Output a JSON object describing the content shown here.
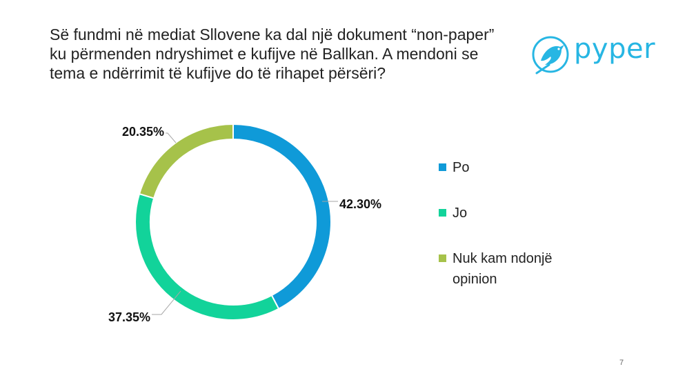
{
  "title_lines": [
    "Së fundmi në mediat Sllovene ka dal një dokument “non-paper”",
    "ku përmenden ndryshimet e kufijve në Ballkan. A mendoni se",
    "tema e ndërrimit të kufijve do të rihapet përsëri?"
  ],
  "logo": {
    "text": "pyper",
    "icon": "bird-icon",
    "color": "#27b6e3"
  },
  "page_number": "7",
  "chart_data": {
    "type": "pie",
    "donut": true,
    "title": "",
    "categories": [
      "Po",
      "Jo",
      "Nuk kam ndonjë opinion"
    ],
    "values": [
      42.3,
      37.35,
      20.35
    ],
    "labels": [
      "42.30%",
      "37.35%",
      "20.35%"
    ],
    "colors": [
      "#0f9ad8",
      "#12d39a",
      "#a6c24a"
    ],
    "legend_position": "right"
  }
}
